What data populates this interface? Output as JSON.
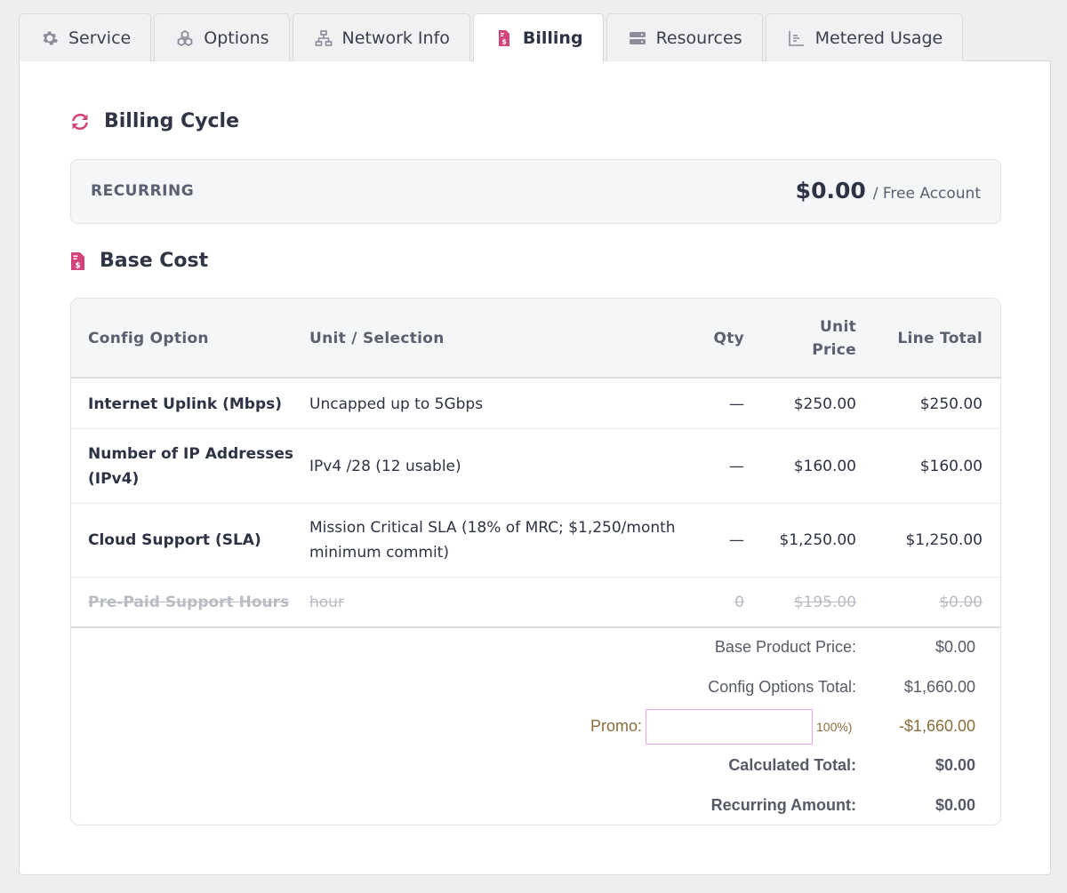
{
  "tabs": [
    {
      "label": "Service",
      "icon": "gear-icon"
    },
    {
      "label": "Options",
      "icon": "cubes-icon"
    },
    {
      "label": "Network Info",
      "icon": "network-icon"
    },
    {
      "label": "Billing",
      "icon": "invoice-icon"
    },
    {
      "label": "Resources",
      "icon": "server-icon"
    },
    {
      "label": "Metered Usage",
      "icon": "chart-icon"
    }
  ],
  "active_tab": "Billing",
  "colors": {
    "accent": "#d2457a",
    "text": "#2d3344",
    "muted": "#5a6070",
    "promo": "#8a6d3b"
  },
  "billing_cycle": {
    "title": "Billing Cycle",
    "label": "RECURRING",
    "amount": "$0.00",
    "suffix": "/ Free Account"
  },
  "base_cost": {
    "title": "Base Cost",
    "headers": {
      "option": "Config Option",
      "unit": "Unit / Selection",
      "qty": "Qty",
      "unit_price_1": "Unit",
      "unit_price_2": "Price",
      "line_total": "Line Total"
    },
    "rows": [
      {
        "option": "Internet Uplink (Mbps)",
        "unit": "Uncapped up to 5Gbps",
        "qty": "—",
        "price": "$250.00",
        "total": "$250.00"
      },
      {
        "option_1": "Number of IP Addresses",
        "option_2": "(IPv4)",
        "unit": "IPv4 /28 (12 usable)",
        "qty": "—",
        "price": "$160.00",
        "total": "$160.00"
      },
      {
        "option": "Cloud Support (SLA)",
        "unit_1": "Mission Critical SLA (18% of MRC; $1,250/month",
        "unit_2": "minimum commit)",
        "qty": "—",
        "price": "$1,250.00",
        "total": "$1,250.00"
      },
      {
        "option": "Pre-Paid Support Hours",
        "unit": "hour",
        "qty": "0",
        "price": "$195.00",
        "total": "$0.00",
        "disabled": true
      }
    ],
    "summary": {
      "base_label": "Base Product Price:",
      "base_value": "$0.00",
      "config_label": "Config Options Total:",
      "config_value": "$1,660.00",
      "promo_label": "Promo:",
      "promo_value": "",
      "promo_pct": "100%)",
      "promo_amount": "-$1,660.00",
      "calc_label": "Calculated Total:",
      "calc_value": "$0.00",
      "recurring_label": "Recurring Amount:",
      "recurring_value": "$0.00"
    }
  }
}
